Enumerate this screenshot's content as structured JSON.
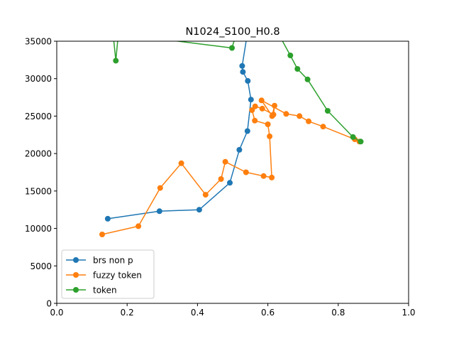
{
  "chart_data": {
    "type": "line",
    "title": "N1024_S100_H0.8",
    "xlabel": "",
    "ylabel": "",
    "xlim": [
      0.0,
      1.0
    ],
    "ylim": [
      0,
      35000
    ],
    "x_ticks": [
      "0.0",
      "0.2",
      "0.4",
      "0.6",
      "0.8",
      "1.0"
    ],
    "y_ticks": [
      "0",
      "5000",
      "10000",
      "15000",
      "20000",
      "25000",
      "30000",
      "35000"
    ],
    "grid": false,
    "legend_position": "lower-left",
    "series": [
      {
        "name": "brs non p",
        "color": "#1f77b4",
        "x": [
          0.145,
          0.292,
          0.405,
          0.492,
          0.519,
          0.542,
          0.552,
          0.543,
          0.529,
          0.527,
          0.54
        ],
        "y": [
          11300,
          12300,
          12500,
          16100,
          20500,
          23000,
          27200,
          29700,
          30900,
          31700,
          35500
        ]
      },
      {
        "name": "fuzzy token",
        "color": "#ff7f0e",
        "x": [
          0.129,
          0.232,
          0.294,
          0.354,
          0.423,
          0.467,
          0.479,
          0.538,
          0.588,
          0.611,
          0.605,
          0.6,
          0.563,
          0.555,
          0.564,
          0.584,
          0.616,
          0.619,
          0.612,
          0.582,
          0.652,
          0.69,
          0.716,
          0.757,
          0.847,
          0.86
        ],
        "y": [
          9200,
          10300,
          15400,
          18700,
          14500,
          16600,
          18900,
          17500,
          17000,
          16800,
          22300,
          23900,
          24400,
          25800,
          26300,
          26000,
          25200,
          26400,
          25000,
          27100,
          25300,
          25000,
          24300,
          23600,
          21900,
          21600
        ]
      },
      {
        "name": "token",
        "color": "#2ca02c",
        "x": [
          0.16,
          0.168,
          0.175,
          0.498,
          0.51,
          0.63,
          0.664,
          0.684,
          0.713,
          0.77,
          0.842,
          0.864
        ],
        "y": [
          36000,
          32400,
          36000,
          34100,
          36000,
          36000,
          33100,
          31300,
          29900,
          25700,
          22200,
          21600
        ]
      }
    ]
  }
}
